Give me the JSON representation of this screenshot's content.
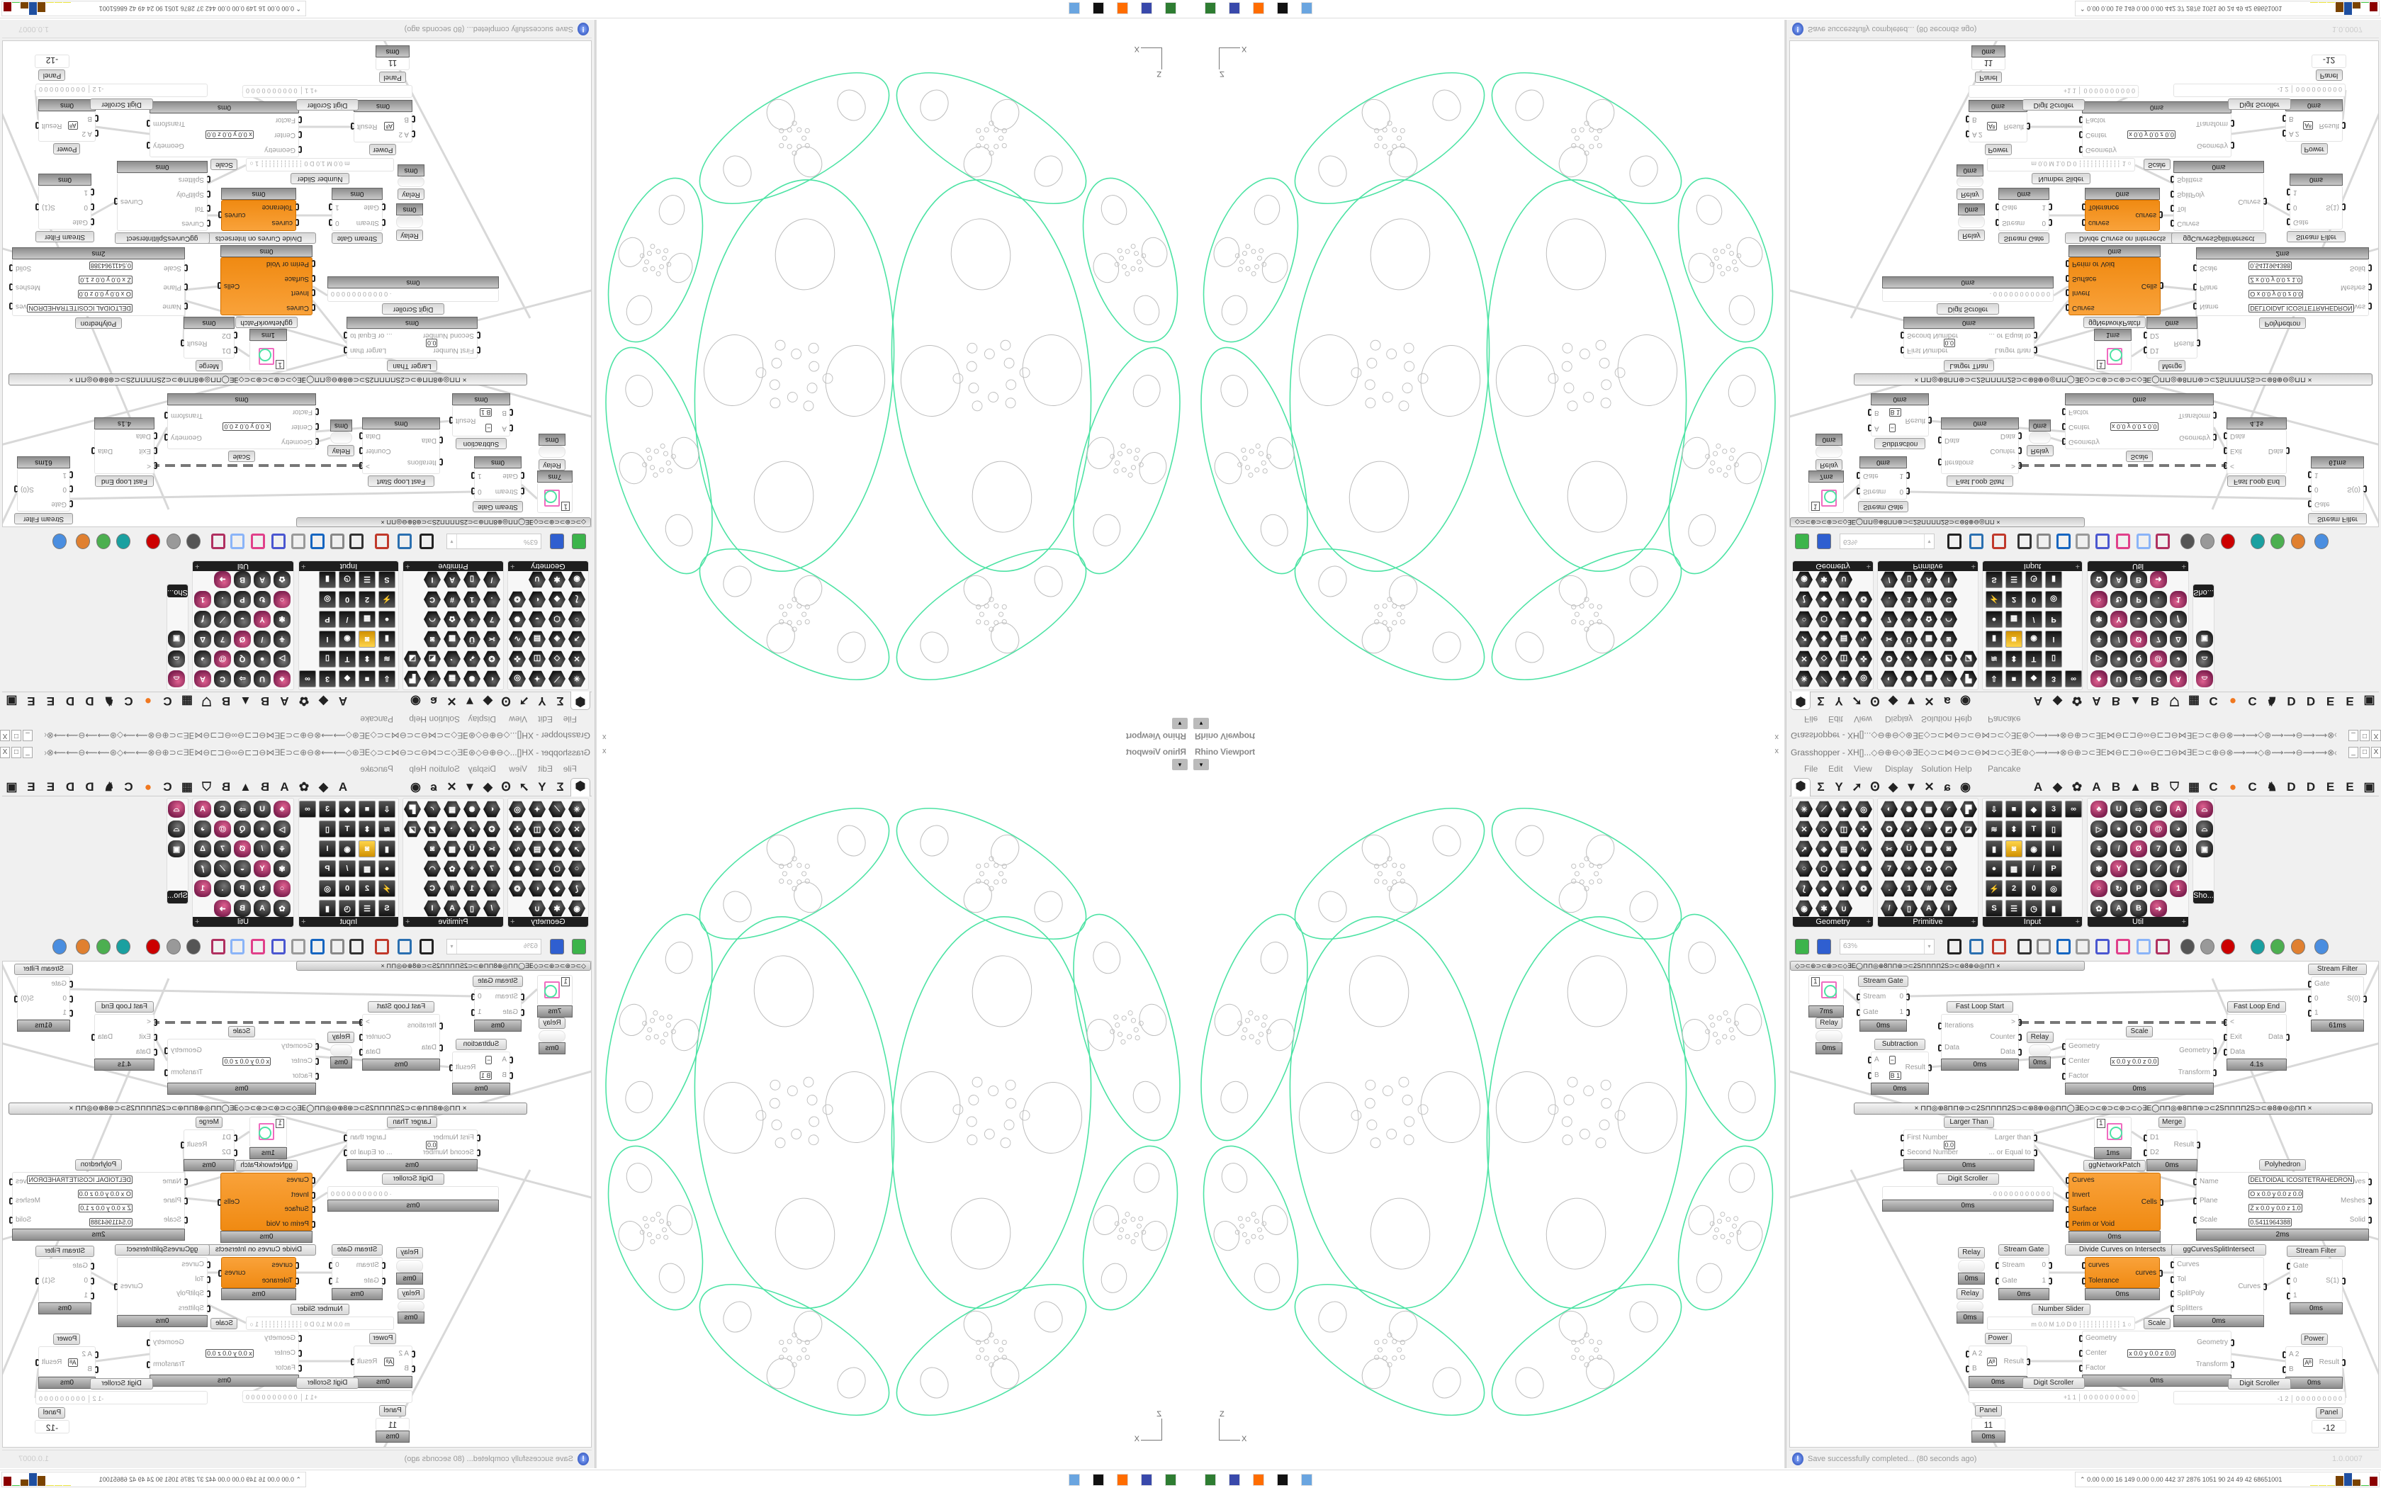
{
  "viewport": {
    "title": "Rhino Viewport",
    "dropdown_icon": "▾",
    "close": "x",
    "axis": {
      "up": "Z",
      "right": "X"
    },
    "curve_color": "#4de3a4",
    "detail_color": "#bdbdbd"
  },
  "gh": {
    "title": "Grasshopper - XH[]...◇⊖⊕⊖◇⊛∃E◇⊃⊂⋈⊖⊃⊂⊖⋈⊃⊂◇∃E⊛◇⟿⟿⊗⊖⊕⊃⊂∃E⋈⊖⊏⊐⊖∞⊖⊏⊐⊖⋈∃E⊃⊂⊕⊖⊗⟿⟿◇⊛⟿⟿⊖⟿⟿⊗◇⊗✣✣⊗◇⊗⟿⊖⟿⟿⊛◇⟿⟿⊗⊖⊕⊃⊂∃E⋈⊖⊏⊐",
    "window_buttons": [
      "_",
      "□",
      "X"
    ],
    "menu": [
      "File",
      "Edit",
      "View",
      "Display",
      "Solution",
      "Help",
      "Pancake"
    ],
    "tabs": {
      "icons": [
        "params-tab",
        "maths-tab",
        "sets-tab",
        "vector-tab",
        "curve-tab",
        "surface-tab",
        "mesh-tab",
        "intersect-tab",
        "transform-tab",
        "display-tab"
      ],
      "icon_glyphs": [
        "⬢",
        "Σ",
        "Y",
        "➚",
        "Ꙩ",
        "◆",
        "▼",
        "✕",
        "ɕ",
        "◉"
      ],
      "letters": [
        "A",
        "◆",
        "✿",
        "A",
        "B",
        "▲",
        "B",
        "⛉",
        "▦",
        "C",
        "●",
        "C",
        "♞",
        "D",
        "D",
        "E",
        "E",
        "▣"
      ]
    },
    "palette": [
      {
        "label": "Geometry",
        "cols": 4,
        "rows": [
          4,
          4,
          4,
          4,
          4,
          3
        ],
        "style": "hex",
        "glyphs": "✳⟋✦◎✕◇◫✜➚◈▤∿○⬡◒✺⟅◆◐❂◉✱∪"
      },
      {
        "label": "Primitive",
        "cols": 5,
        "rows": [
          5,
          5,
          4,
          4,
          4,
          4
        ],
        "style": "hex",
        "glyphs": "◐✺▦◜▛✪➶◔◩◪✂Ü▩◙7+✿◠.1#C/▯AID●◓"
      },
      {
        "label": "Input",
        "cols": 5,
        "rows": [
          5,
          4,
          4,
          4,
          4,
          4
        ],
        "style": "sq",
        "glyphs": "⇩■◆3∞≋⬍T▯▮◙◉I●▦/P⚡20◎S☰◷▮ID"
      },
      {
        "label": "Util",
        "cols": 5,
        "rows": [
          5,
          5,
          5,
          5,
          5,
          4
        ],
        "style": "ut",
        "glyphs": "♣U⇨CA▷●Q@◕⚘/Ø7Δ✾Y◒⟋ƒ○↻P.1✿AB➜◒✕"
      },
      {
        "label": "Sho...",
        "cols": 1,
        "rows": [
          1,
          1,
          1
        ],
        "style": "ut",
        "glyphs": "⌓⌓▣"
      }
    ],
    "toolbar": {
      "zoom": "63%",
      "zoom_arrow": "▾",
      "icons": [
        {
          "name": "file-new-icon",
          "color": "#3cb44b"
        },
        {
          "name": "save-icon",
          "color": "#2f5fd0"
        },
        {
          "name": "zoom-extents-icon",
          "color": "#222"
        },
        {
          "name": "preview-eye-icon",
          "color": "#2a6fb0"
        },
        {
          "name": "sketch-pen-icon",
          "color": "#c0392b"
        },
        {
          "name": "bake-icon",
          "color": "#333"
        },
        {
          "name": "email-icon",
          "color": "#888"
        },
        {
          "name": "gha-icon",
          "color": "#1565c0"
        },
        {
          "name": "image-icon",
          "color": "#999"
        },
        {
          "name": "search-icon",
          "color": "#4a56d0"
        },
        {
          "name": "package-icon",
          "color": "#e0408a"
        },
        {
          "name": "bulb-icon",
          "color": "#8ab4f8"
        },
        {
          "name": "wires-icon",
          "color": "#b03060"
        },
        {
          "name": "preview-shaded-icon",
          "color": "#555"
        },
        {
          "name": "preview-wire-icon",
          "color": "#999"
        },
        {
          "name": "preview-selected-icon",
          "color": "#c00"
        },
        {
          "name": "teal-shape-icon",
          "color": "#1aa0a0"
        },
        {
          "name": "green-shape-icon",
          "color": "#4caf50"
        },
        {
          "name": "sphere-half-icon",
          "color": "#e08030"
        },
        {
          "name": "blue-sphere-icon",
          "color": "#4a8ee0"
        }
      ]
    },
    "doc_tab": "◇⊃⊂⊛⊃⊂⊛⊃⊂◇∃E◯⊓⊓◎⊕8⊓⊓⊛⊃⊂2S⊓⊓⊓⊓2S⊃⊂⊛8⊕⊖◎⊓⊓        ×",
    "group_bar": "×          ⊓⊓◎⊕8⊓⊓⊛⊃⊂2S⊓⊓⊓⊓2S⊃⊂⊛8⊕⊖◎⊓⊓◯∃E◇⊃⊂⊛⊃⊂⊛⊃⊂◇∃E◯⊓⊓◎⊕8⊓⊓⊛⊃⊂2S⊓⊓⊓⊓2S⊃⊂⊛8⊕⊖◎⊓⊓          ×",
    "nodes": [
      {
        "kind": "swatch",
        "value": "1",
        "time": "7ms"
      },
      {
        "caption": "Stream Gate",
        "inputs": [
          "Stream",
          "Gate"
        ],
        "outputs": [
          "0",
          "1"
        ],
        "time": "0ms"
      },
      {
        "caption": "Relay",
        "kind": "relay",
        "time": "0ms"
      },
      {
        "caption": "Subtraction",
        "inputs": [
          "A",
          "B"
        ],
        "outputs": [
          "Result"
        ],
        "mid": [
          "− ",
          "B 1"
        ],
        "time": "0ms"
      },
      {
        "caption": "Fast Loop Start",
        "inputs": [
          "Iterations",
          "Data"
        ],
        "outputs": [
          ">",
          "Counter",
          "Data"
        ],
        "time": "0ms"
      },
      {
        "caption": "Relay",
        "kind": "relay",
        "time": "0ms"
      },
      {
        "caption": "Scale",
        "inputs": [
          "Geometry",
          "Center",
          "Factor"
        ],
        "outputs": [
          "Geometry",
          "Transform"
        ],
        "mid": [
          "x 0.0 y 0.0 z 0.0"
        ],
        "time": "0ms"
      },
      {
        "caption": "Fast Loop End",
        "inputs": [
          "<",
          "Exit",
          "Data"
        ],
        "outputs": [
          "Data"
        ],
        "time": "4.1s"
      },
      {
        "caption": "Stream Filter",
        "inputs": [
          "Gate",
          "0",
          "1"
        ],
        "outputs": [
          "S(0)"
        ],
        "time": "61ms"
      },
      {
        "caption": "Larger Than",
        "inputs": [
          "First Number",
          "Second Number"
        ],
        "outputs": [
          "Larger than",
          "... or Equal to"
        ],
        "mid": [
          "0.0"
        ],
        "time": "0ms"
      },
      {
        "caption": "Digit Scroller",
        "kind": "scroller",
        "value": "·  0 0 0 0 0 0 0 0 0 0   0",
        "time": "0ms"
      },
      {
        "kind": "swatch",
        "value": "1",
        "time": "1ms"
      },
      {
        "caption": "Merge",
        "inputs": [
          "D1",
          "D2"
        ],
        "outputs": [
          "Result"
        ],
        "time": "0ms"
      },
      {
        "caption": "Polyhedron",
        "inputs": [
          "Name",
          "Plane",
          "Scale"
        ],
        "outputs": [
          "Curves",
          "Meshes",
          "Solid"
        ],
        "mid": [
          "DELTOIDAL ICOSITETRAHEDRON",
          "O x 0.0 y 0.0 z 0.0",
          "Z x 0.0 y 0.0 z 1.0",
          "0.5411964388"
        ],
        "time": "2ms"
      },
      {
        "caption": "ggNetworkPatch",
        "kind": "orange",
        "inputs": [
          "Curves",
          "Invert",
          "Surface",
          "Perim or Void"
        ],
        "outputs": [
          "Cells"
        ],
        "time": "0ms"
      },
      {
        "caption": "Relay",
        "kind": "relay",
        "time": "0ms"
      },
      {
        "caption": "Relay",
        "kind": "relay",
        "time": "0ms"
      },
      {
        "caption": "Stream Gate",
        "inputs": [
          "Stream",
          "Gate"
        ],
        "outputs": [
          "0",
          "1"
        ],
        "time": "0ms"
      },
      {
        "caption": "Divide Curves on Intersects",
        "kind": "orange",
        "inputs": [
          "curves",
          "Tolerance"
        ],
        "outputs": [
          "curves"
        ],
        "time": "0ms"
      },
      {
        "caption": "ggCurvesSplitIntersect",
        "inputs": [
          "Curves",
          "Tol",
          "SplitPoly",
          "Splitters"
        ],
        "outputs": [
          "Curves"
        ],
        "time": "0ms"
      },
      {
        "caption": "Stream Filter",
        "inputs": [
          "Gate",
          "0",
          "1"
        ],
        "outputs": [
          "S(1)"
        ],
        "time": "0ms"
      },
      {
        "caption": "Number Slider",
        "kind": "scroller",
        "value": "m 0.0  M 1.0  D 0   ┆┆┆┆┆┆┆┆┆┆┆ 1 ○"
      },
      {
        "caption": "Scale",
        "inputs": [
          "Geometry",
          "Center",
          "Factor"
        ],
        "outputs": [
          "Geometry",
          "Transform"
        ],
        "mid": [
          "x 0.0 y 0.0 z 0.0"
        ],
        "time": "0ms"
      },
      {
        "caption": "Power",
        "inputs": [
          "A 2",
          "B"
        ],
        "outputs": [
          "Result"
        ],
        "mid": [
          "Aᴮ"
        ],
        "time": "0ms"
      },
      {
        "caption": "Power",
        "inputs": [
          "A 2",
          "B"
        ],
        "outputs": [
          "Result"
        ],
        "mid": [
          "Aᴮ"
        ],
        "time": "0ms"
      },
      {
        "caption": "Digit Scroller",
        "kind": "scroller",
        "value": "+1 1 │ 0 0 0 0 0 0 0 0 0 0"
      },
      {
        "caption": "Digit Scroller",
        "kind": "scroller",
        "value": "-1 2 │ 0 0 0 0 0 0 0 0 0"
      },
      {
        "caption": "Panel",
        "kind": "panel",
        "value": "11",
        "time": "0ms"
      },
      {
        "caption": "Panel",
        "kind": "panel",
        "value": "-12"
      }
    ],
    "status": {
      "message": "Save successfully completed... (80 seconds ago)",
      "version": "1.0.0007",
      "icon": "!"
    }
  },
  "taskbar": {
    "icons": [
      {
        "name": "rhino-app-icon",
        "color": "#2e7d32"
      },
      {
        "name": "save-floppy-icon",
        "color": "#3949ab"
      },
      {
        "name": "firefox-icon",
        "color": "#ff6d00"
      },
      {
        "name": "inkscape-icon",
        "color": "#111"
      },
      {
        "name": "calculator-icon",
        "color": "#6aa5e0"
      }
    ],
    "stats_icon": "⌃",
    "stats": "0.00 0.00  16  149 0.00 0.00 442  37  2876 1051  90  24  49  42 68651001",
    "meters": [
      {
        "color": "#e8e03a",
        "level": 0.05
      },
      {
        "color": "#e8e03a",
        "level": 0.05
      },
      {
        "color": "#e8e03a",
        "level": 0.05
      },
      {
        "color": "#7a4300",
        "level": 0.8
      },
      {
        "color": "#1f4fa0",
        "level": 1.0
      },
      {
        "color": "#7a4300",
        "level": 0.5
      },
      {
        "color": "#3cc43c",
        "level": 0.05
      },
      {
        "color": "#8b0000",
        "level": 0.7
      }
    ]
  }
}
